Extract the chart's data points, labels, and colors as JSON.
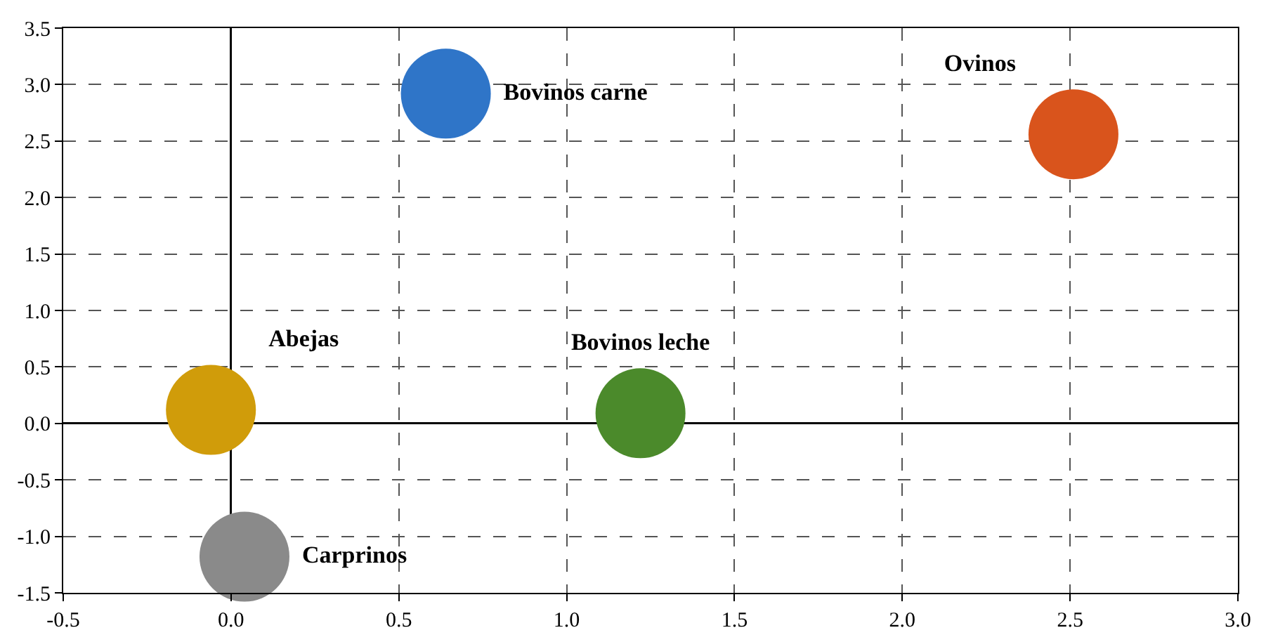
{
  "chart_data": {
    "type": "scatter",
    "marker": "circle",
    "series": [
      {
        "name": "Bovinos carne",
        "color": "#2f75c8",
        "x": [
          0.64
        ],
        "values": [
          2.92
        ]
      },
      {
        "name": "Ovinos",
        "color": "#d9541c",
        "x": [
          2.51
        ],
        "values": [
          2.56
        ]
      },
      {
        "name": "Bovinos leche",
        "color": "#4b8a2b",
        "x": [
          1.22
        ],
        "values": [
          0.09
        ]
      },
      {
        "name": "Abejas",
        "color": "#d09c0a",
        "x": [
          -0.06
        ],
        "values": [
          0.12
        ]
      },
      {
        "name": "Carprinos",
        "color": "#8a8a8a",
        "x": [
          0.04
        ],
        "values": [
          -1.18
        ]
      }
    ],
    "xlim": [
      -0.5,
      3.0
    ],
    "xticks": [
      -0.5,
      {
        "value": 0,
        "label": "0.0"
      },
      0.5,
      {
        "value": 1,
        "label": "1.0"
      },
      1.5,
      {
        "value": 2,
        "label": "2.0"
      },
      2.5,
      {
        "value": 3,
        "label": "3.0"
      }
    ],
    "ylim": [
      -1.5,
      3.5
    ],
    "yticks": [
      -1.5,
      {
        "value": -1,
        "label": "-1.0"
      },
      -0.5,
      {
        "value": 0,
        "label": "0.0"
      },
      0.5,
      {
        "value": 1,
        "label": "1.0"
      },
      1.5,
      {
        "value": 2,
        "label": "2.0"
      },
      2.5,
      {
        "value": 3,
        "label": "3.0"
      },
      3.5
    ],
    "grid": true,
    "legend": false
  }
}
